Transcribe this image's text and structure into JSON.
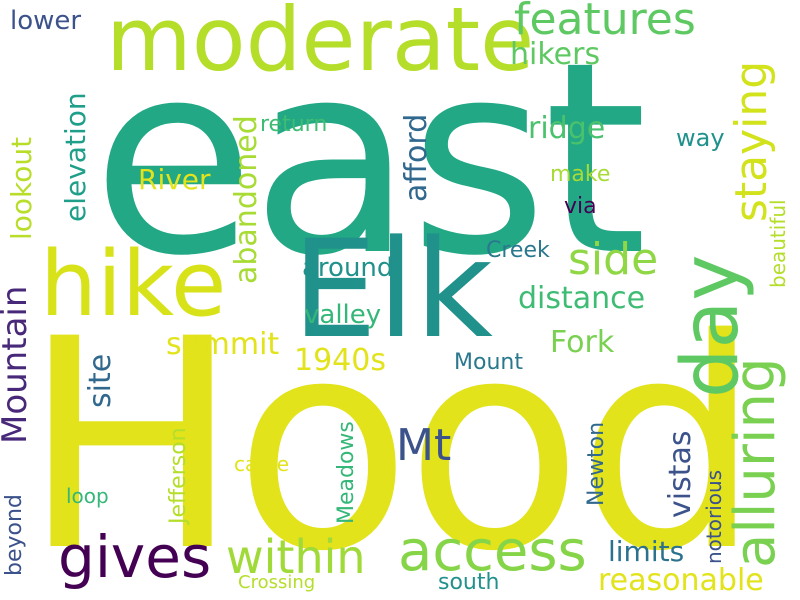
{
  "palette": {
    "yellow": "#e2e31b",
    "lime": "#b5de2b",
    "lightgreen": "#7ad151",
    "green": "#5ec962",
    "teal": "#21918c",
    "teal2": "#1f9e89",
    "seagreen": "#35b779",
    "blue": "#3b528b",
    "indigo": "#31688e",
    "purple": "#440154",
    "violet": "#482878"
  },
  "words": {
    "hood": "Hood",
    "east": "east",
    "elk": "Elk",
    "moderate": "moderate",
    "hike": "hike",
    "day": "day",
    "access": "access",
    "alluring": "alluring",
    "gives": "gives",
    "within": "within",
    "features": "features",
    "mt": "Mt",
    "side": "side",
    "staying": "staying",
    "mountain": "Mountain",
    "distance": "distance",
    "abandoned": "abandoned",
    "ridge": "ridge",
    "summit": "summit",
    "lookout": "lookout",
    "elevation": "elevation",
    "river": "River",
    "fork": "Fork",
    "vistas": "vistas",
    "reasonable": "reasonable",
    "limits": "limits",
    "around": "around",
    "valley": "valley",
    "afford": "afford",
    "1940s": "1940s",
    "hikers": "hikers",
    "lower": "lower",
    "return": "return",
    "site": "site",
    "way": "way",
    "make": "make",
    "via": "via",
    "creek": "Creek",
    "mount": "Mount",
    "jefferson": "Jefferson",
    "meadows": "Meadows",
    "newton": "Newton",
    "notorious": "notorious",
    "beautiful": "beautiful",
    "came": "came",
    "loop": "loop",
    "beyond": "beyond",
    "crossing": "Crossing",
    "south": "south"
  }
}
